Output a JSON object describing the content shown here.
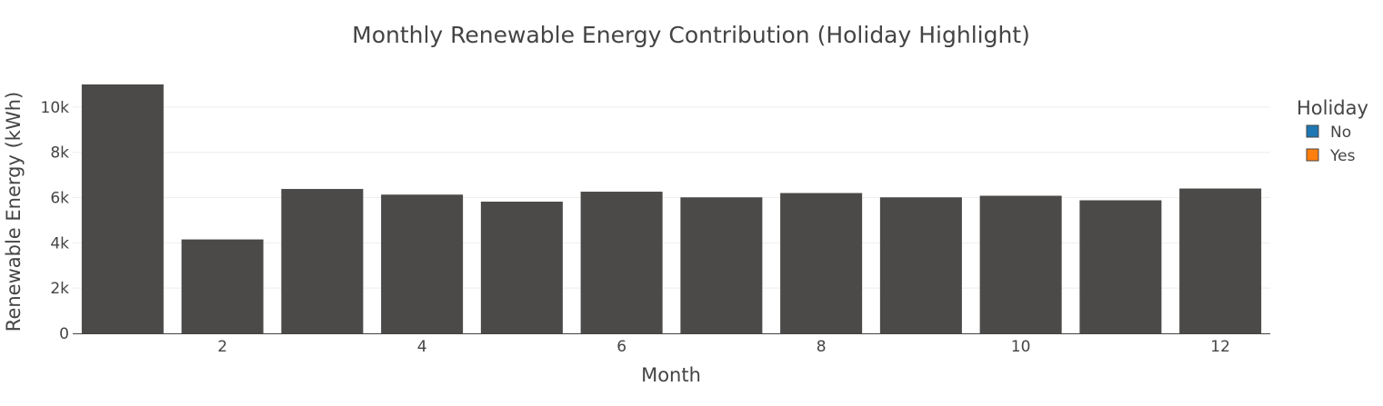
{
  "chart_data": {
    "type": "bar",
    "barmode": "overlay",
    "title": "Monthly Renewable Energy Contribution (Holiday Highlight)",
    "xlabel": "Month",
    "ylabel": "Renewable Energy (kWh)",
    "x": [
      1,
      2,
      3,
      4,
      5,
      6,
      7,
      8,
      9,
      10,
      11,
      12
    ],
    "x_tick_values": [
      2,
      4,
      6,
      8,
      10,
      12
    ],
    "x_tick_labels": [
      "2",
      "4",
      "6",
      "8",
      "10",
      "12"
    ],
    "y_tick_values": [
      0,
      2000,
      4000,
      6000,
      8000,
      10000
    ],
    "y_tick_labels": [
      "0",
      "2k",
      "4k",
      "6k",
      "8k",
      "10k"
    ],
    "xlim": [
      0.5,
      12.5
    ],
    "ylim": [
      0,
      11600
    ],
    "grid": true,
    "legend_title": "Holiday",
    "legend_placement": "top-right",
    "bar_color": "#464646",
    "series": [
      {
        "name": "No",
        "color": "#1f77b4",
        "values": [
          11000,
          4150,
          6380,
          6130,
          5820,
          6260,
          6010,
          6200,
          6010,
          6080,
          5880,
          6400
        ]
      },
      {
        "name": "Yes",
        "color": "#ff7f0e",
        "values": [
          11000,
          4150,
          6380,
          6130,
          5820,
          6260,
          6010,
          6200,
          6010,
          6080,
          5880,
          6400
        ]
      }
    ]
  }
}
